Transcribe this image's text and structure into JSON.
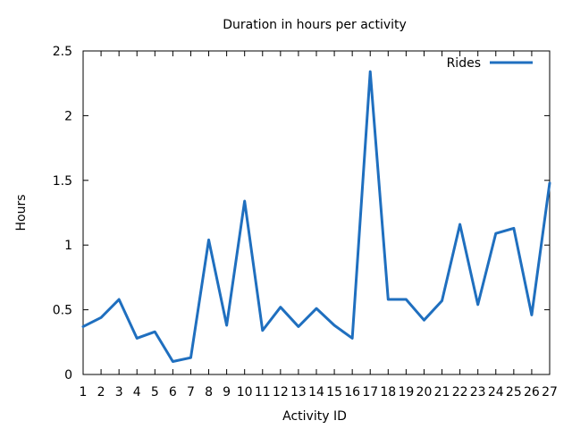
{
  "chart_data": {
    "type": "line",
    "title": "Duration in hours per activity",
    "xlabel": "Activity ID",
    "ylabel": "Hours",
    "x": [
      1,
      2,
      3,
      4,
      5,
      6,
      7,
      8,
      9,
      10,
      11,
      12,
      13,
      14,
      15,
      16,
      17,
      18,
      19,
      20,
      21,
      22,
      23,
      24,
      25,
      26,
      27
    ],
    "xlim": [
      1,
      27
    ],
    "ylim": [
      0,
      2.5
    ],
    "yticks": [
      0,
      0.5,
      1,
      1.5,
      2,
      2.5
    ],
    "ytick_labels": [
      "0",
      "0.5",
      "1",
      "1.5",
      "2",
      "2.5"
    ],
    "grid": false,
    "legend": "top-right",
    "series": [
      {
        "name": "Rides",
        "color": "#1f6fbf",
        "values": [
          0.37,
          0.44,
          0.58,
          0.28,
          0.33,
          0.1,
          0.13,
          1.04,
          0.38,
          1.34,
          0.34,
          0.52,
          0.37,
          0.51,
          0.38,
          0.28,
          2.34,
          0.58,
          0.58,
          0.42,
          0.57,
          1.16,
          0.54,
          1.09,
          1.13,
          0.46,
          1.48
        ]
      }
    ]
  }
}
